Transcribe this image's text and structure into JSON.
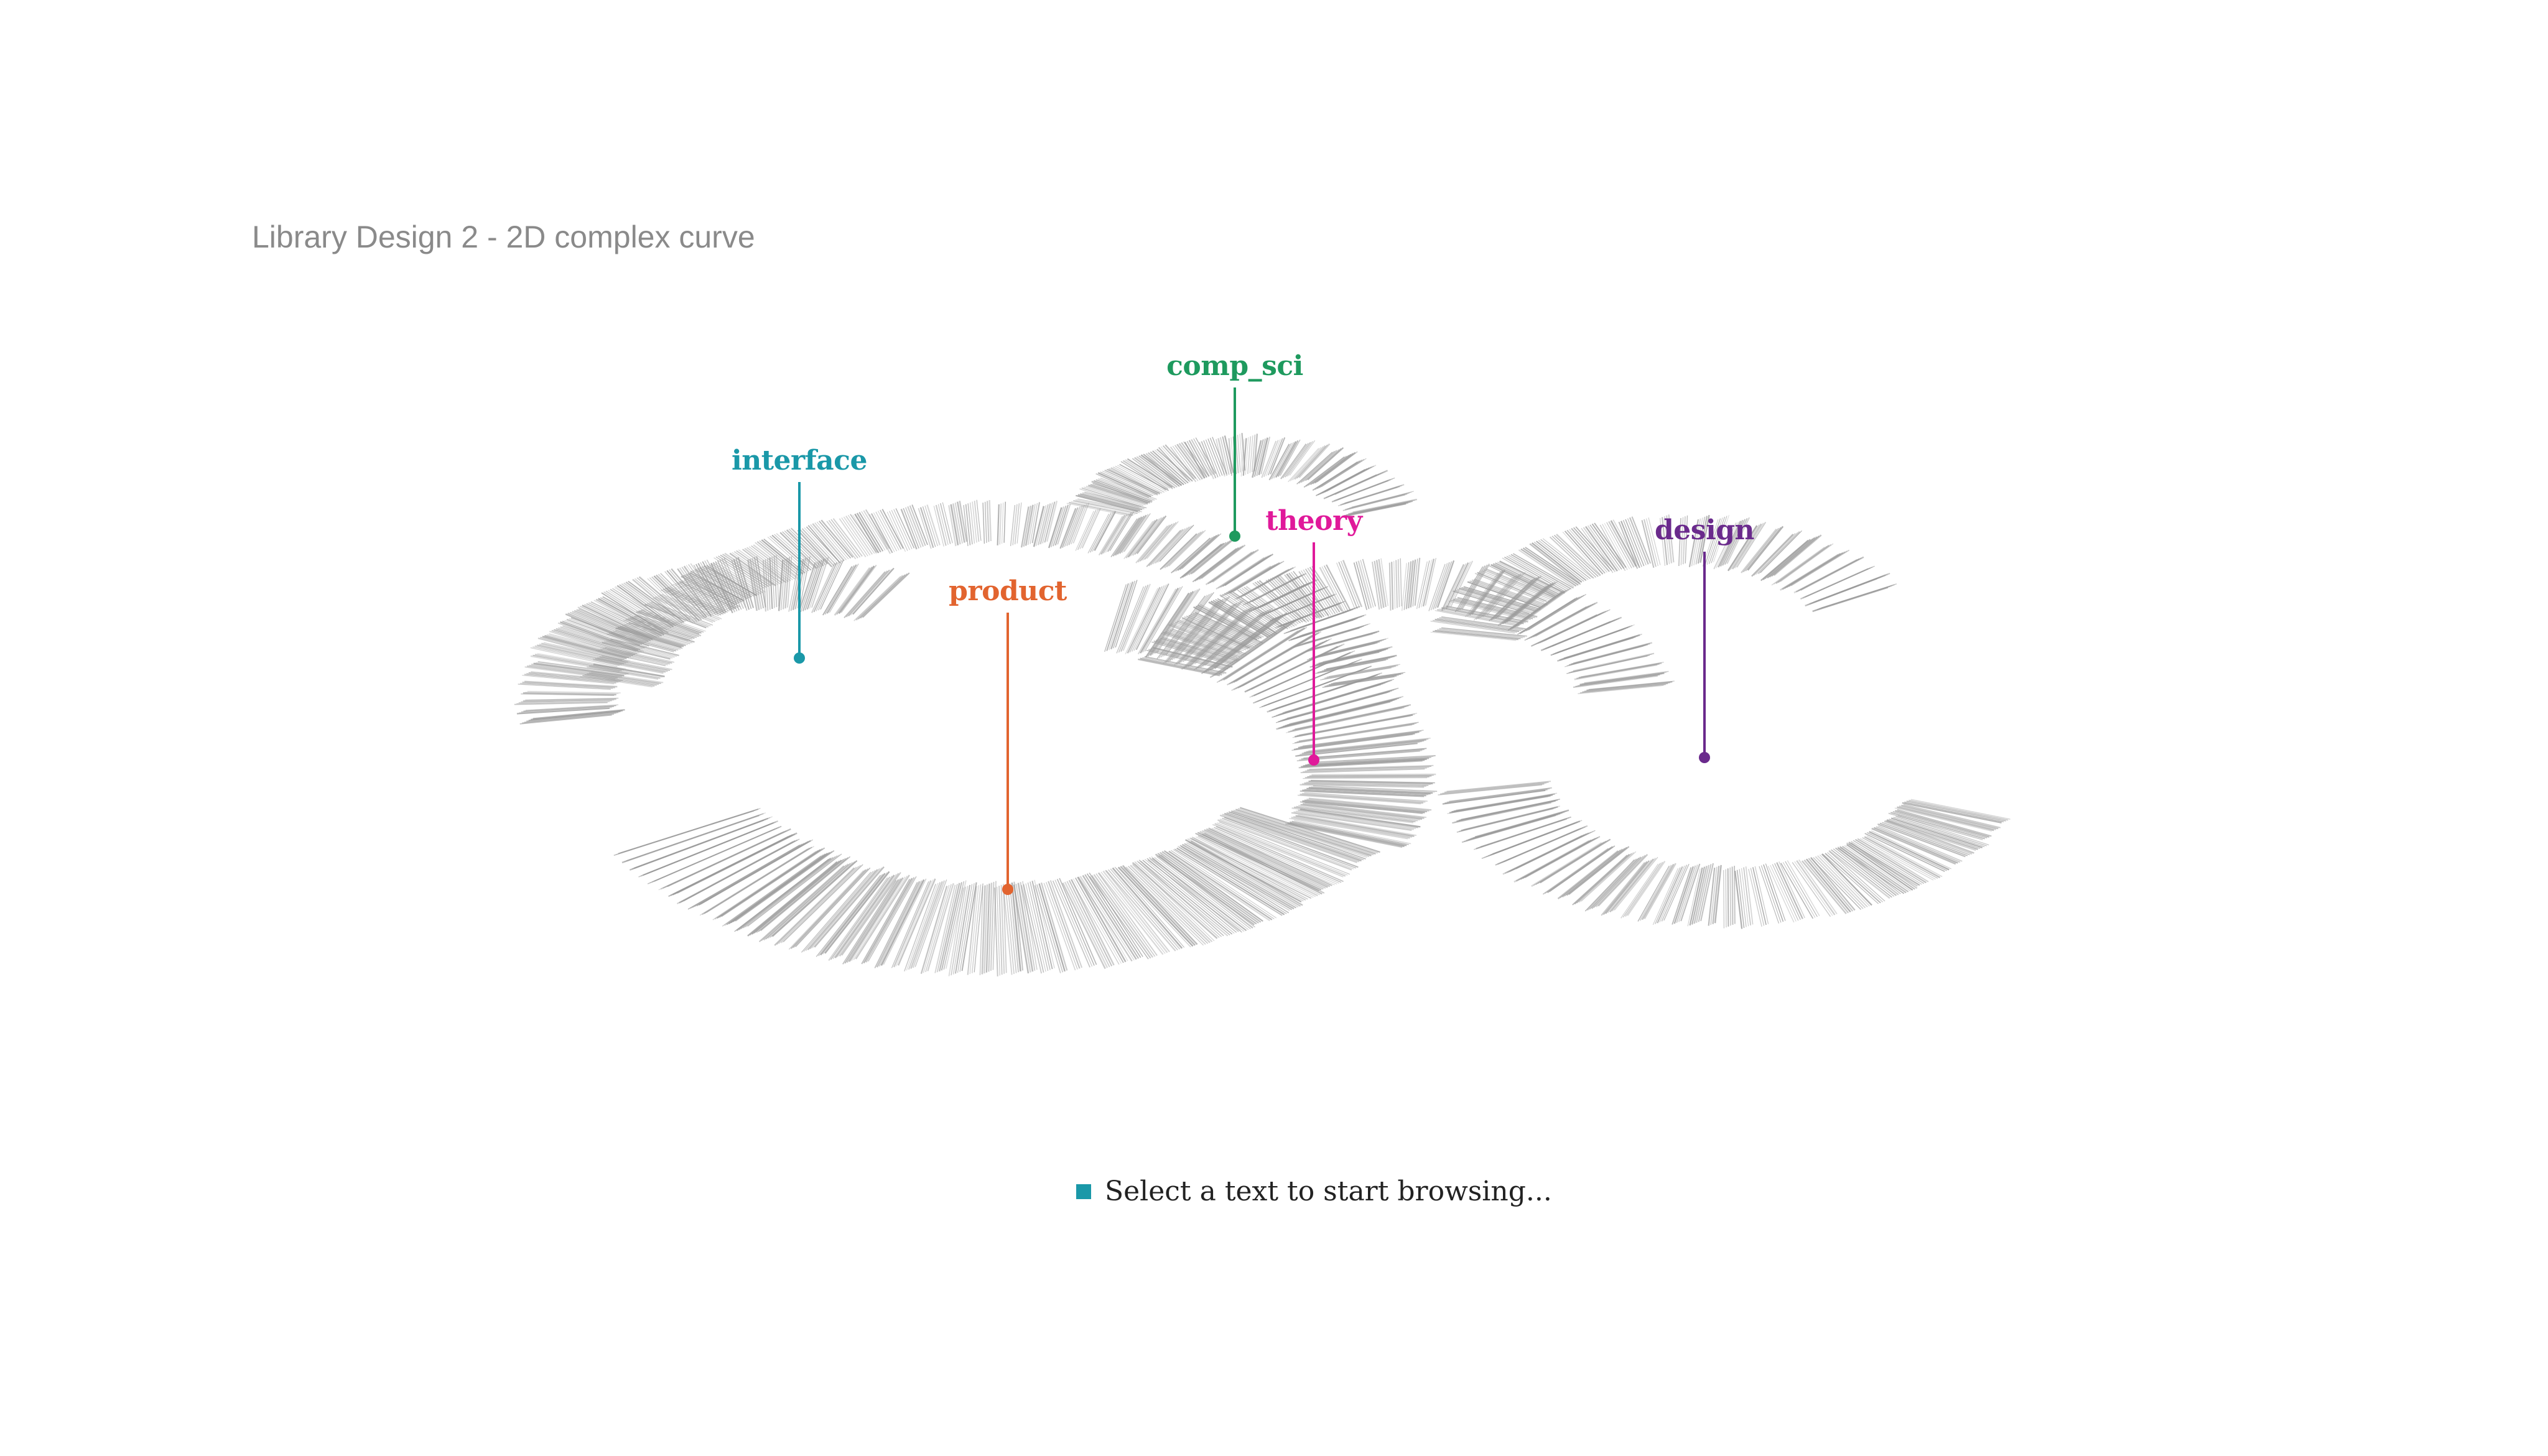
{
  "page": {
    "title": "Library Design 2 - 2D complex curve"
  },
  "categories": [
    {
      "key": "interface",
      "label": "interface",
      "color": "#1a98a8"
    },
    {
      "key": "comp_sci",
      "label": "comp_sci",
      "color": "#1e9a5e"
    },
    {
      "key": "product",
      "label": "product",
      "color": "#e2642f"
    },
    {
      "key": "theory",
      "label": "theory",
      "color": "#e0199a"
    },
    {
      "key": "design",
      "label": "design",
      "color": "#6a2a8c"
    }
  ],
  "status": {
    "text": "Select a text to start browsing...",
    "icon": "square-icon",
    "color": "#1a98a8"
  },
  "colors": {
    "book_spine": "#9a9a9a",
    "title": "#8a8a8a"
  }
}
